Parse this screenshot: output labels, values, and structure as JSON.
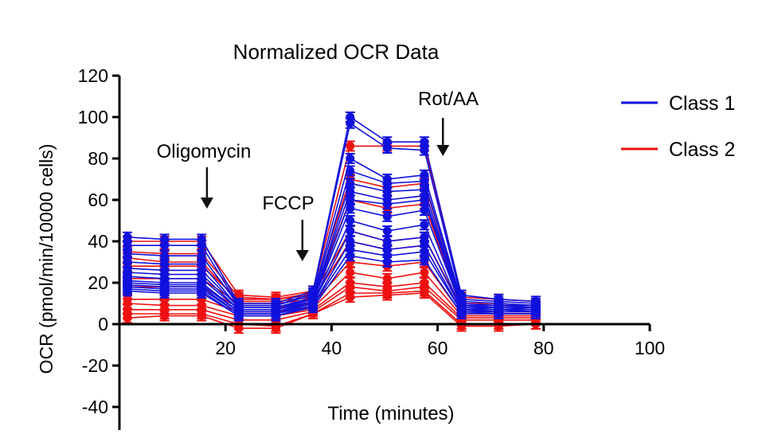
{
  "chart_data": {
    "type": "line",
    "title": "Normalized OCR Data",
    "xlabel": "Time (minutes)",
    "ylabel": "OCR (pmol/min/10000 cells)",
    "xlim": [
      0,
      100
    ],
    "ylim": [
      -40,
      120
    ],
    "xticks": [
      "20",
      "40",
      "60",
      "80",
      "100"
    ],
    "xtick_values": [
      20,
      40,
      60,
      80,
      100
    ],
    "yticks": [
      "120",
      "100",
      "80",
      "60",
      "40",
      "20",
      "0",
      "-20",
      "-40"
    ],
    "ytick_values": [
      120,
      100,
      80,
      60,
      40,
      20,
      0,
      -20,
      -40
    ],
    "x": [
      1.5,
      8.5,
      15.5,
      22.5,
      29.5,
      36.5,
      43.5,
      50.5,
      57.5,
      64.5,
      71.5,
      78.5
    ],
    "legend": {
      "position": "top-right",
      "entries": [
        {
          "label": "Class 1",
          "color": "#1111dd"
        },
        {
          "label": "Class 2",
          "color": "#ee1111"
        }
      ]
    },
    "annotations": [
      {
        "label": "Oligomycin",
        "x": 16.5
      },
      {
        "label": "FCCP",
        "x": 34.5
      },
      {
        "label": "Rot/AA",
        "x": 61
      }
    ],
    "series": [
      {
        "name": "Class 2",
        "color": "#ee1111",
        "values": [
          28,
          28,
          28,
          12,
          12,
          14,
          45,
          40,
          42,
          8,
          8,
          8
        ]
      },
      {
        "name": "Class 2",
        "color": "#ee1111",
        "values": [
          32,
          30,
          30,
          11,
          11,
          13,
          60,
          56,
          58,
          7,
          7,
          7
        ]
      },
      {
        "name": "Class 2",
        "color": "#ee1111",
        "values": [
          22,
          22,
          22,
          10,
          10,
          12,
          40,
          36,
          38,
          6,
          6,
          6
        ]
      },
      {
        "name": "Class 2",
        "color": "#ee1111",
        "values": [
          18,
          18,
          18,
          8,
          8,
          10,
          30,
          28,
          30,
          5,
          5,
          5
        ]
      },
      {
        "name": "Class 2",
        "color": "#ee1111",
        "values": [
          12,
          12,
          12,
          6,
          6,
          8,
          25,
          22,
          25,
          4,
          4,
          4
        ]
      },
      {
        "name": "Class 2",
        "color": "#ee1111",
        "values": [
          10,
          9,
          9,
          4,
          4,
          7,
          20,
          18,
          20,
          3,
          3,
          3
        ]
      },
      {
        "name": "Class 2",
        "color": "#ee1111",
        "values": [
          7,
          7,
          7,
          2,
          2,
          6,
          18,
          16,
          18,
          2,
          2,
          2
        ]
      },
      {
        "name": "Class 2",
        "color": "#ee1111",
        "values": [
          5,
          5,
          5,
          0,
          -1,
          5,
          15,
          15,
          16,
          0,
          0,
          0
        ]
      },
      {
        "name": "Class 2",
        "color": "#ee1111",
        "values": [
          3,
          4,
          4,
          -2,
          -2,
          5,
          13,
          14,
          15,
          -1,
          -1,
          0
        ]
      },
      {
        "name": "Class 2",
        "color": "#ee1111",
        "values": [
          40,
          40,
          40,
          14,
          13,
          16,
          86,
          86,
          86,
          13,
          12,
          11
        ]
      },
      {
        "name": "Class 2",
        "color": "#ee1111",
        "values": [
          35,
          34,
          34,
          13,
          12,
          15,
          70,
          66,
          68,
          10,
          10,
          9
        ]
      },
      {
        "name": "Class 1",
        "color": "#1111dd",
        "values": [
          42,
          41,
          41,
          10,
          10,
          16,
          100,
          88,
          88,
          14,
          12,
          11
        ]
      },
      {
        "name": "Class 1",
        "color": "#1111dd",
        "values": [
          38,
          38,
          38,
          9,
          9,
          15,
          97,
          85,
          84,
          12,
          11,
          10
        ]
      },
      {
        "name": "Class 1",
        "color": "#1111dd",
        "values": [
          34,
          33,
          33,
          9,
          9,
          14,
          80,
          70,
          72,
          11,
          10,
          9
        ]
      },
      {
        "name": "Class 1",
        "color": "#1111dd",
        "values": [
          30,
          29,
          29,
          8,
          8,
          13,
          74,
          68,
          69,
          10,
          9,
          9
        ]
      },
      {
        "name": "Class 1",
        "color": "#1111dd",
        "values": [
          27,
          26,
          26,
          8,
          8,
          12,
          68,
          64,
          65,
          9,
          9,
          8
        ]
      },
      {
        "name": "Class 1",
        "color": "#1111dd",
        "values": [
          25,
          24,
          24,
          7,
          7,
          12,
          64,
          60,
          62,
          9,
          8,
          8
        ]
      },
      {
        "name": "Class 1",
        "color": "#1111dd",
        "values": [
          23,
          22,
          22,
          7,
          7,
          11,
          60,
          58,
          60,
          8,
          8,
          7
        ]
      },
      {
        "name": "Class 1",
        "color": "#1111dd",
        "values": [
          21,
          20,
          20,
          6,
          6,
          11,
          56,
          52,
          55,
          8,
          7,
          7
        ]
      },
      {
        "name": "Class 1",
        "color": "#1111dd",
        "values": [
          20,
          19,
          19,
          6,
          6,
          10,
          50,
          45,
          48,
          7,
          7,
          6
        ]
      },
      {
        "name": "Class 1",
        "color": "#1111dd",
        "values": [
          19,
          18,
          18,
          5,
          5,
          10,
          45,
          40,
          42,
          7,
          6,
          6
        ]
      },
      {
        "name": "Class 1",
        "color": "#1111dd",
        "values": [
          18,
          17,
          17,
          5,
          5,
          9,
          40,
          36,
          38,
          6,
          6,
          6
        ]
      },
      {
        "name": "Class 1",
        "color": "#1111dd",
        "values": [
          17,
          16,
          16,
          4,
          4,
          9,
          36,
          33,
          35,
          6,
          5,
          5
        ]
      },
      {
        "name": "Class 1",
        "color": "#1111dd",
        "values": [
          16,
          15,
          15,
          4,
          4,
          8,
          33,
          30,
          31,
          5,
          5,
          5
        ]
      }
    ]
  }
}
